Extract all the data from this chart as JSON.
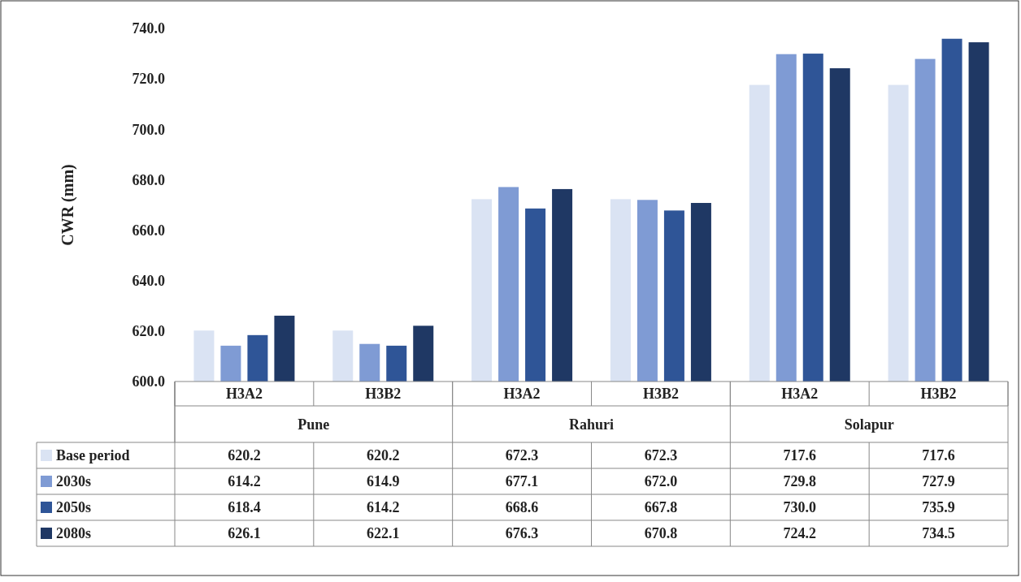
{
  "chart_data": {
    "type": "bar",
    "ylabel": "CWR (mm)",
    "categories": [
      "H3A2",
      "H3B2",
      "H3A2",
      "H3B2",
      "H3A2",
      "H3B2"
    ],
    "annotations": [
      "Pune",
      "Rahuri",
      "Solapur"
    ],
    "ylim": [
      600,
      740
    ],
    "yticks": [
      {
        "value": 600,
        "label": "600.0"
      },
      {
        "value": 620,
        "label": "620.0"
      },
      {
        "value": 640,
        "label": "640.0"
      },
      {
        "value": 660,
        "label": "660.0"
      },
      {
        "value": 680,
        "label": "680.0"
      },
      {
        "value": 700,
        "label": "700.0"
      },
      {
        "value": 720,
        "label": "720.0"
      },
      {
        "value": 740,
        "label": "740.0"
      }
    ],
    "legend": "bottom",
    "series": [
      {
        "name": "Base period",
        "color": "#dae3f3",
        "values": [
          620.2,
          620.2,
          672.3,
          672.3,
          717.6,
          717.6
        ],
        "value_labels": [
          "620.2",
          "620.2",
          "672.3",
          "672.3",
          "717.6",
          "717.6"
        ]
      },
      {
        "name": "2030s",
        "color": "#7f9bd4",
        "values": [
          614.2,
          614.9,
          677.1,
          672.0,
          729.8,
          727.9
        ],
        "value_labels": [
          "614.2",
          "614.9",
          "677.1",
          "672.0",
          "729.8",
          "727.9"
        ]
      },
      {
        "name": "2050s",
        "color": "#2f5597",
        "values": [
          618.4,
          614.2,
          668.6,
          667.8,
          730.0,
          735.9
        ],
        "value_labels": [
          "618.4",
          "614.2",
          "668.6",
          "667.8",
          "730.0",
          "735.9"
        ]
      },
      {
        "name": "2080s",
        "color": "#1f3864",
        "values": [
          626.1,
          622.1,
          676.3,
          670.8,
          724.2,
          734.5
        ],
        "value_labels": [
          "626.1",
          "622.1",
          "676.3",
          "670.8",
          "724.2",
          "734.5"
        ]
      }
    ]
  }
}
